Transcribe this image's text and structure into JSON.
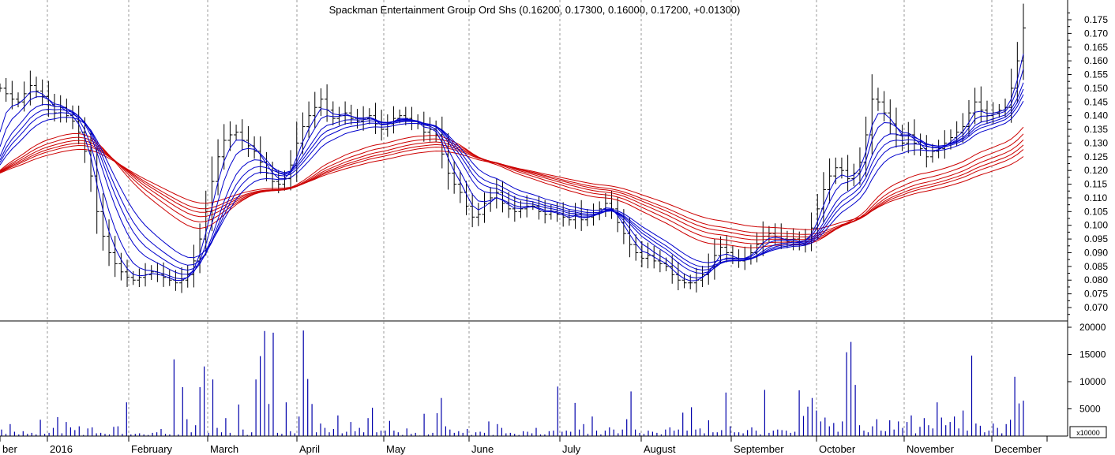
{
  "chart_data": [
    {
      "type": "line",
      "title": "Spackman Entertainment Group Ord Shs (0.16200, 0.17300, 0.16000, 0.17200, +0.01300)",
      "subtype": "OHLC price bars with Guppy multiple moving averages",
      "x_labels": [
        "ber",
        "2016",
        "February",
        "March",
        "April",
        "May",
        "June",
        "July",
        "August",
        "September",
        "October",
        "November",
        "December"
      ],
      "ylim": [
        0.065,
        0.18
      ],
      "y_ticks": [
        "0.070",
        "0.075",
        "0.080",
        "0.085",
        "0.090",
        "0.095",
        "0.100",
        "0.105",
        "0.110",
        "0.115",
        "0.120",
        "0.125",
        "0.130",
        "0.135",
        "0.140",
        "0.145",
        "0.150",
        "0.155",
        "0.160",
        "0.165",
        "0.170",
        "0.175"
      ],
      "grid": "vertical dashed at month boundaries",
      "colors": {
        "price_bars": "#000000",
        "short_term_averages": "#0000cc",
        "long_term_averages": "#cc0000"
      },
      "series": [
        {
          "role": "price_close",
          "values": [
            0.15,
            0.148,
            0.146,
            0.145,
            0.148,
            0.151,
            0.149,
            0.147,
            0.144,
            0.141,
            0.143,
            0.14,
            0.138,
            0.134,
            0.127,
            0.118,
            0.105,
            0.096,
            0.09,
            0.086,
            0.083,
            0.081,
            0.08,
            0.081,
            0.082,
            0.083,
            0.082,
            0.081,
            0.08,
            0.079,
            0.08,
            0.082,
            0.087,
            0.095,
            0.105,
            0.116,
            0.125,
            0.131,
            0.133,
            0.134,
            0.131,
            0.129,
            0.127,
            0.123,
            0.119,
            0.116,
            0.115,
            0.117,
            0.122,
            0.13,
            0.136,
            0.14,
            0.143,
            0.146,
            0.142,
            0.139,
            0.14,
            0.141,
            0.139,
            0.138,
            0.139,
            0.14,
            0.137,
            0.135,
            0.137,
            0.139,
            0.14,
            0.139,
            0.138,
            0.137,
            0.134,
            0.135,
            0.133,
            0.126,
            0.119,
            0.115,
            0.112,
            0.107,
            0.103,
            0.104,
            0.108,
            0.11,
            0.112,
            0.108,
            0.106,
            0.105,
            0.106,
            0.107,
            0.107,
            0.105,
            0.104,
            0.105,
            0.104,
            0.103,
            0.102,
            0.104,
            0.102,
            0.103,
            0.104,
            0.106,
            0.108,
            0.106,
            0.101,
            0.097,
            0.093,
            0.09,
            0.088,
            0.089,
            0.087,
            0.086,
            0.085,
            0.082,
            0.08,
            0.079,
            0.079,
            0.08,
            0.082,
            0.085,
            0.089,
            0.092,
            0.09,
            0.088,
            0.087,
            0.088,
            0.09,
            0.093,
            0.096,
            0.097,
            0.096,
            0.095,
            0.094,
            0.095,
            0.093,
            0.095,
            0.099,
            0.106,
            0.113,
            0.118,
            0.121,
            0.12,
            0.117,
            0.119,
            0.123,
            0.133,
            0.146,
            0.145,
            0.141,
            0.137,
            0.133,
            0.13,
            0.133,
            0.13,
            0.128,
            0.125,
            0.127,
            0.128,
            0.13,
            0.132,
            0.134,
            0.136,
            0.141,
            0.145,
            0.142,
            0.14,
            0.141,
            0.142,
            0.143,
            0.15,
            0.16,
            0.172
          ]
        }
      ]
    },
    {
      "type": "bar",
      "title": "",
      "ylabel": "x10000",
      "ylim": [
        0,
        21000
      ],
      "y_ticks": [
        "5000",
        "10000",
        "15000",
        "20000"
      ],
      "colors": {
        "bars": "#0000aa"
      },
      "series": [
        {
          "name": "",
          "values": [
            1200,
            400,
            2200,
            800,
            300,
            900,
            400,
            600,
            300,
            3000,
            400,
            600,
            1500,
            3500,
            500,
            2600,
            1600,
            1100,
            1800,
            200,
            1400,
            1600,
            500,
            600,
            400,
            300,
            1700,
            1800,
            400,
            6200,
            300,
            400,
            500,
            300,
            200,
            600,
            700,
            1300,
            400,
            300,
            14100,
            300,
            9000,
            3100,
            700,
            2000,
            9000,
            12800,
            600,
            10400,
            1500,
            700,
            3300,
            600,
            100,
            5800,
            1200,
            200,
            700,
            10400,
            14700,
            19300,
            5900,
            19000,
            600,
            400,
            6200,
            900,
            500,
            3600,
            19400,
            10500,
            5900,
            700,
            2300,
            1500,
            700,
            1300,
            3800,
            500,
            800,
            2600,
            900,
            1500,
            700,
            3300,
            5200,
            700,
            1000,
            1000,
            2800,
            1000,
            700,
            200,
            1400,
            400,
            600,
            100,
            4100,
            300,
            600,
            4200,
            7000,
            1800,
            1200,
            600,
            900,
            600,
            1300,
            200,
            700,
            800,
            600,
            2700,
            200,
            2200,
            1500,
            500,
            600,
            400,
            200,
            900,
            800,
            500,
            1500,
            300,
            300,
            900,
            1000,
            9100,
            800,
            1000,
            800,
            6100,
            1200,
            2200,
            400,
            3600,
            1000,
            300,
            1000,
            1600,
            1200,
            500,
            1200,
            3100,
            8200,
            1200,
            600,
            400,
            1000,
            800,
            600,
            300,
            1200,
            1600,
            1000,
            1200,
            4300,
            1000,
            5300,
            1200,
            1400,
            500,
            2900,
            700,
            700,
            1100,
            8000,
            1800,
            700,
            700,
            500,
            1100,
            1600,
            1000,
            300,
            8500,
            600,
            1000,
            1200,
            1100,
            1000,
            600,
            800,
            8400,
            3700,
            5400,
            7000,
            4700,
            2700,
            3400,
            1800,
            2400,
            800,
            2700,
            15400,
            17300,
            9400,
            2000,
            1000,
            700,
            1800,
            3100,
            1000,
            900,
            2900,
            1200,
            2700,
            1500,
            2600,
            3800,
            500,
            1700,
            3300,
            2000,
            1400,
            6200,
            3400,
            2000,
            2600,
            3600,
            1400,
            4700,
            1000,
            14800,
            2300,
            1900,
            700,
            1000,
            2300,
            1500,
            500,
            2200,
            3000,
            10900,
            6000,
            6500
          ]
        }
      ]
    }
  ]
}
